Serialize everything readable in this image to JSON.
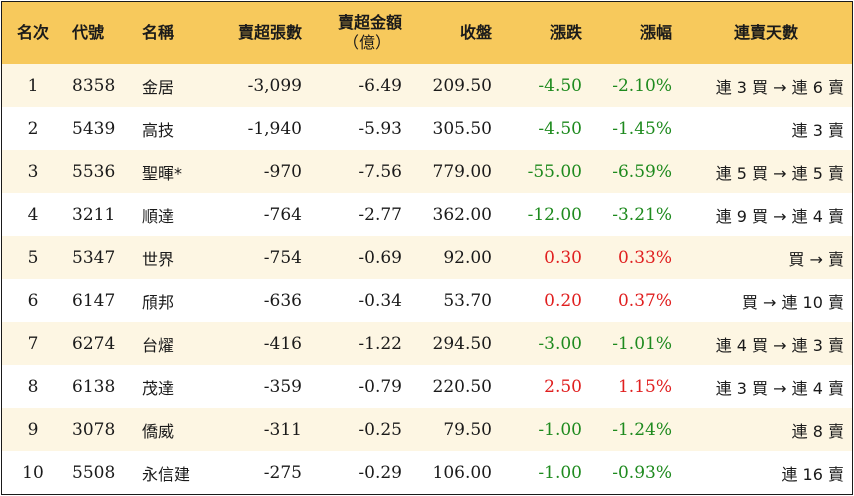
{
  "colors": {
    "header_bg": "#f7c95c",
    "odd_row_bg": "#fdf6e3",
    "even_row_bg": "#ffffff",
    "down_color": "#1e8a1e",
    "up_color": "#e01f1f"
  },
  "headers": {
    "rank": "名次",
    "code": "代號",
    "name": "名稱",
    "net_sell_shares": "賣超張數",
    "net_sell_amount": "賣超金額",
    "net_sell_amount_unit": "（億）",
    "close": "收盤",
    "change": "漲跌",
    "change_pct": "漲幅",
    "streak": "連賣天數"
  },
  "rows": [
    {
      "rank": "1",
      "code": "8358",
      "name": "金居",
      "shares": "-3,099",
      "amount": "-6.49",
      "close": "209.50",
      "change": "-4.50",
      "change_pct": "-2.10%",
      "direction": "down",
      "streak": "連 3 買 → 連 6 賣"
    },
    {
      "rank": "2",
      "code": "5439",
      "name": "高技",
      "shares": "-1,940",
      "amount": "-5.93",
      "close": "305.50",
      "change": "-4.50",
      "change_pct": "-1.45%",
      "direction": "down",
      "streak": "連 3 賣"
    },
    {
      "rank": "3",
      "code": "5536",
      "name": "聖暉*",
      "shares": "-970",
      "amount": "-7.56",
      "close": "779.00",
      "change": "-55.00",
      "change_pct": "-6.59%",
      "direction": "down",
      "streak": "連 5 買 → 連 5 賣"
    },
    {
      "rank": "4",
      "code": "3211",
      "name": "順達",
      "shares": "-764",
      "amount": "-2.77",
      "close": "362.00",
      "change": "-12.00",
      "change_pct": "-3.21%",
      "direction": "down",
      "streak": "連 9 買 → 連 4 賣"
    },
    {
      "rank": "5",
      "code": "5347",
      "name": "世界",
      "shares": "-754",
      "amount": "-0.69",
      "close": "92.00",
      "change": "0.30",
      "change_pct": "0.33%",
      "direction": "up",
      "streak": "買 → 賣"
    },
    {
      "rank": "6",
      "code": "6147",
      "name": "頎邦",
      "shares": "-636",
      "amount": "-0.34",
      "close": "53.70",
      "change": "0.20",
      "change_pct": "0.37%",
      "direction": "up",
      "streak": "買 → 連 10 賣"
    },
    {
      "rank": "7",
      "code": "6274",
      "name": "台燿",
      "shares": "-416",
      "amount": "-1.22",
      "close": "294.50",
      "change": "-3.00",
      "change_pct": "-1.01%",
      "direction": "down",
      "streak": "連 4 買 → 連 3 賣"
    },
    {
      "rank": "8",
      "code": "6138",
      "name": "茂達",
      "shares": "-359",
      "amount": "-0.79",
      "close": "220.50",
      "change": "2.50",
      "change_pct": "1.15%",
      "direction": "up",
      "streak": "連 3 買 → 連 4 賣"
    },
    {
      "rank": "9",
      "code": "3078",
      "name": "僑威",
      "shares": "-311",
      "amount": "-0.25",
      "close": "79.50",
      "change": "-1.00",
      "change_pct": "-1.24%",
      "direction": "down",
      "streak": "連 8 賣"
    },
    {
      "rank": "10",
      "code": "5508",
      "name": "永信建",
      "shares": "-275",
      "amount": "-0.29",
      "close": "106.00",
      "change": "-1.00",
      "change_pct": "-0.93%",
      "direction": "down",
      "streak": "連 16 賣"
    }
  ]
}
